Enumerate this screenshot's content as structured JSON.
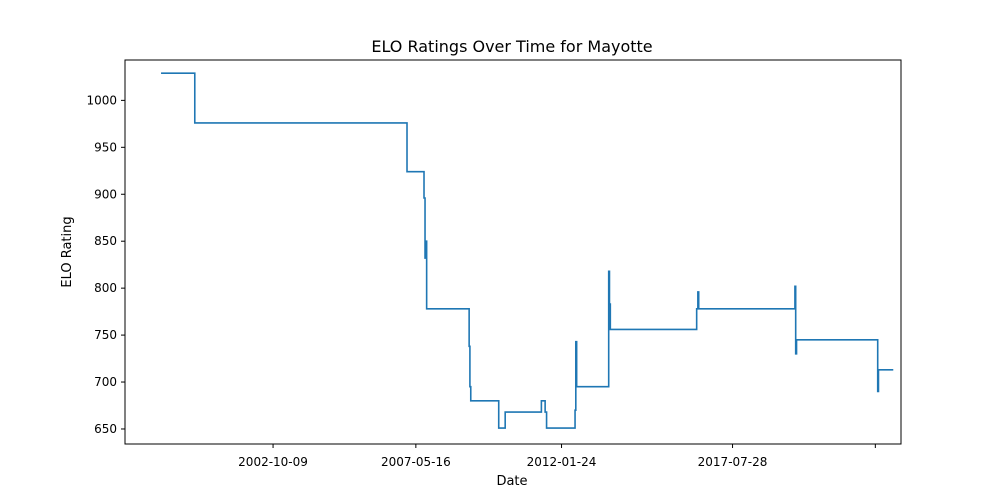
{
  "chart_data": {
    "type": "line",
    "title": "ELO Ratings Over Time for Mayotte",
    "xlabel": "Date",
    "ylabel": "ELO Rating",
    "x_ticks": [
      "2002-10-09",
      "2007-05-16",
      "2012-01-24",
      "2017-07-28",
      ""
    ],
    "y_ticks": [
      650,
      700,
      750,
      800,
      850,
      900,
      950,
      1000
    ],
    "xlim": [
      "1998-01-01",
      "2022-12-31"
    ],
    "ylim": [
      634,
      1043
    ],
    "grid": false,
    "line_color": "#1f77b4",
    "series": [
      {
        "points": [
          [
            "1999-03-01",
            1029
          ],
          [
            "2000-04-01",
            1029
          ],
          [
            "2000-04-01",
            976
          ],
          [
            "2007-02-01",
            976
          ],
          [
            "2007-02-01",
            924
          ],
          [
            "2007-08-20",
            924
          ],
          [
            "2007-08-20",
            896
          ],
          [
            "2007-09-01",
            896
          ],
          [
            "2007-09-01",
            832
          ],
          [
            "2007-09-10",
            832
          ],
          [
            "2007-09-10",
            850
          ],
          [
            "2007-09-20",
            850
          ],
          [
            "2007-09-20",
            778
          ],
          [
            "2009-02-01",
            778
          ],
          [
            "2009-02-01",
            738
          ],
          [
            "2009-02-10",
            738
          ],
          [
            "2009-02-10",
            695
          ],
          [
            "2009-02-20",
            695
          ],
          [
            "2009-02-20",
            680
          ],
          [
            "2010-01-15",
            680
          ],
          [
            "2010-01-15",
            651
          ],
          [
            "2010-04-01",
            651
          ],
          [
            "2010-04-01",
            668
          ],
          [
            "2011-06-01",
            668
          ],
          [
            "2011-06-01",
            680
          ],
          [
            "2011-07-15",
            680
          ],
          [
            "2011-07-15",
            668
          ],
          [
            "2011-08-01",
            668
          ],
          [
            "2011-08-01",
            651
          ],
          [
            "2012-07-01",
            651
          ],
          [
            "2012-07-01",
            670
          ],
          [
            "2012-07-10",
            670
          ],
          [
            "2012-07-10",
            743
          ],
          [
            "2012-07-20",
            743
          ],
          [
            "2012-07-20",
            695
          ],
          [
            "2013-08-01",
            695
          ],
          [
            "2013-08-01",
            818
          ],
          [
            "2013-08-10",
            818
          ],
          [
            "2013-08-10",
            783
          ],
          [
            "2013-08-20",
            783
          ],
          [
            "2013-08-20",
            756
          ],
          [
            "2016-06-01",
            756
          ],
          [
            "2016-06-01",
            778
          ],
          [
            "2016-06-15",
            778
          ],
          [
            "2016-06-15",
            796
          ],
          [
            "2016-06-25",
            796
          ],
          [
            "2016-06-25",
            778
          ],
          [
            "2019-08-01",
            778
          ],
          [
            "2019-08-01",
            802
          ],
          [
            "2019-08-10",
            802
          ],
          [
            "2019-08-10",
            730
          ],
          [
            "2019-08-20",
            730
          ],
          [
            "2019-08-20",
            745
          ],
          [
            "2022-04-01",
            745
          ],
          [
            "2022-04-01",
            690
          ],
          [
            "2022-04-10",
            690
          ],
          [
            "2022-04-10",
            713
          ],
          [
            "2022-10-01",
            713
          ]
        ]
      }
    ]
  }
}
